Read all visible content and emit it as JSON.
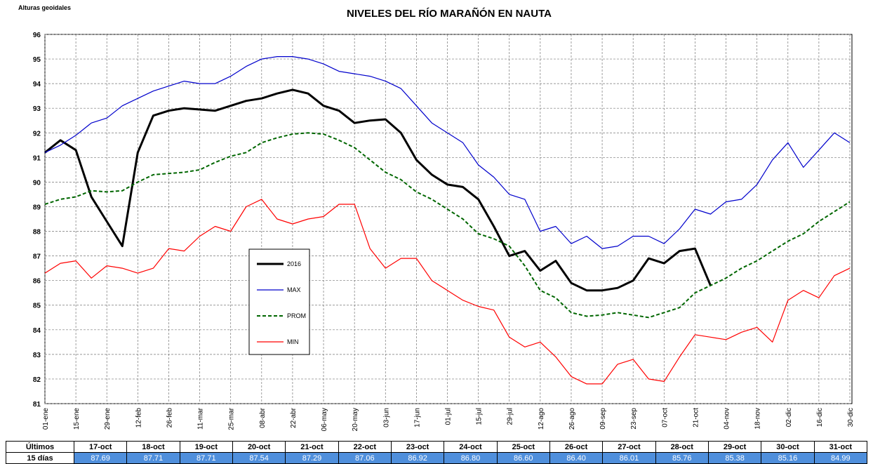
{
  "chart_data": {
    "type": "line",
    "title": "NIVELES DEL RÍO MARAÑÓN EN NAUTA",
    "y_label": "Alturas geoidales",
    "categories": [
      "01-ene",
      null,
      "15-ene",
      null,
      "29-ene",
      null,
      "12-feb",
      null,
      "26-feb",
      null,
      "11-mar",
      null,
      "25-mar",
      null,
      "08-abr",
      null,
      "22-abr",
      null,
      "06-may",
      null,
      "20-may",
      null,
      "03-jun",
      null,
      "17-jun",
      null,
      "01-jul",
      null,
      "15-jul",
      null,
      "29-jul",
      null,
      "12-ago",
      null,
      "26-ago",
      null,
      "09-sep",
      null,
      "23-sep",
      null,
      "07-oct",
      null,
      "21-oct",
      null,
      "04-nov",
      null,
      "18-nov",
      null,
      "02-dic",
      null,
      "16-dic",
      null,
      "30-dic"
    ],
    "series": [
      {
        "name": "2016",
        "color": "#000000",
        "style": "bold",
        "values": [
          91.2,
          91.7,
          91.3,
          89.4,
          88.4,
          87.4,
          91.2,
          92.7,
          92.9,
          93.0,
          92.95,
          92.9,
          93.1,
          93.3,
          93.4,
          93.6,
          93.75,
          93.6,
          93.1,
          92.9,
          92.4,
          92.5,
          92.55,
          92.0,
          90.9,
          90.3,
          89.9,
          89.8,
          89.3,
          88.2,
          87.0,
          87.2,
          86.4,
          86.8,
          85.9,
          85.6,
          85.6,
          85.7,
          86.0,
          86.9,
          86.7,
          87.2,
          87.3,
          85.8,
          null,
          null,
          null,
          null,
          null,
          null,
          null,
          null,
          null
        ]
      },
      {
        "name": "MAX",
        "color": "#0000cc",
        "style": "solid",
        "values": [
          91.2,
          91.5,
          91.9,
          92.4,
          92.6,
          93.1,
          93.4,
          93.7,
          93.9,
          94.1,
          94.0,
          94.0,
          94.3,
          94.7,
          95.0,
          95.1,
          95.1,
          95.0,
          94.8,
          94.5,
          94.4,
          94.3,
          94.1,
          93.8,
          93.1,
          92.4,
          92.0,
          91.6,
          90.7,
          90.2,
          89.5,
          89.3,
          88.0,
          88.2,
          87.5,
          87.8,
          87.3,
          87.4,
          87.8,
          87.8,
          87.5,
          88.1,
          88.9,
          88.7,
          89.2,
          89.3,
          89.9,
          90.9,
          91.6,
          90.6,
          91.3,
          92.0,
          91.6
        ]
      },
      {
        "name": "PROM",
        "color": "#006600",
        "style": "dashed",
        "values": [
          89.1,
          89.3,
          89.4,
          89.65,
          89.6,
          89.65,
          90.0,
          90.3,
          90.35,
          90.4,
          90.5,
          90.8,
          91.05,
          91.2,
          91.6,
          91.8,
          91.95,
          92.0,
          91.95,
          91.7,
          91.4,
          90.9,
          90.4,
          90.1,
          89.6,
          89.3,
          88.9,
          88.5,
          87.9,
          87.7,
          87.4,
          86.6,
          85.6,
          85.3,
          84.7,
          84.55,
          84.6,
          84.7,
          84.6,
          84.5,
          84.7,
          84.9,
          85.5,
          85.8,
          86.1,
          86.5,
          86.8,
          87.2,
          87.6,
          87.9,
          88.4,
          88.8,
          89.2
        ]
      },
      {
        "name": "MIN",
        "color": "#ff0000",
        "style": "solid",
        "values": [
          86.3,
          86.7,
          86.8,
          86.1,
          86.6,
          86.5,
          86.3,
          86.5,
          87.3,
          87.2,
          87.8,
          88.2,
          88.0,
          89.0,
          89.3,
          88.5,
          88.3,
          88.5,
          88.6,
          89.1,
          89.1,
          87.3,
          86.5,
          86.9,
          86.9,
          86.0,
          85.6,
          85.2,
          84.95,
          84.8,
          83.7,
          83.3,
          83.5,
          82.9,
          82.1,
          81.8,
          81.8,
          82.6,
          82.8,
          82.0,
          81.9,
          82.9,
          83.8,
          83.7,
          83.6,
          83.9,
          84.1,
          83.5,
          85.2,
          85.6,
          85.3,
          86.2,
          86.5
        ]
      }
    ],
    "ylim": [
      81,
      96
    ],
    "yticks": [
      81,
      82,
      83,
      84,
      85,
      86,
      87,
      88,
      89,
      90,
      91,
      92,
      93,
      94,
      95,
      96
    ],
    "grid": true
  },
  "table": {
    "header": [
      "Últimos",
      "17-oct",
      "18-oct",
      "19-oct",
      "20-oct",
      "21-oct",
      "22-oct",
      "23-oct",
      "24-oct",
      "25-oct",
      "26-oct",
      "27-oct",
      "28-oct",
      "29-oct",
      "30-oct",
      "31-oct"
    ],
    "rows": [
      [
        "15 días",
        "87.69",
        "87.71",
        "87.71",
        "87.54",
        "87.29",
        "87.06",
        "86.92",
        "86.80",
        "86.60",
        "86.40",
        "86.01",
        "85.76",
        "85.38",
        "85.16",
        "84.99"
      ]
    ]
  }
}
